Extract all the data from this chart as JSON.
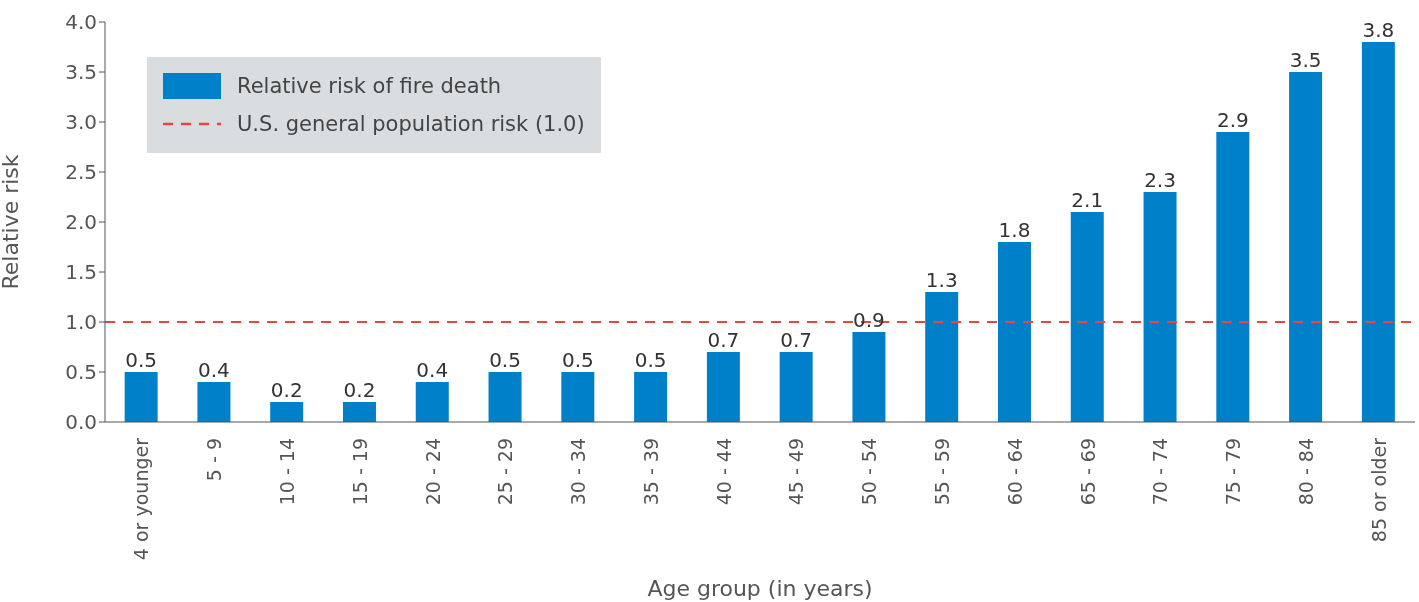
{
  "chart_data": {
    "type": "bar",
    "xlabel": "Age group (in years)",
    "ylabel": "Relative risk",
    "categories": [
      "4 or younger",
      "5 - 9",
      "10 - 14",
      "15 - 19",
      "20 - 24",
      "25 - 29",
      "30 - 34",
      "35 - 39",
      "40 - 44",
      "45 - 49",
      "50 - 54",
      "55 - 59",
      "60 - 64",
      "65 - 69",
      "70 - 74",
      "75 - 79",
      "80 - 84",
      "85 or older"
    ],
    "series": [
      {
        "name": "Relative risk of fire death",
        "color": "#0080c9",
        "values": [
          0.5,
          0.4,
          0.2,
          0.2,
          0.4,
          0.5,
          0.5,
          0.5,
          0.7,
          0.7,
          0.9,
          1.3,
          1.8,
          2.1,
          2.3,
          2.9,
          3.5,
          3.8
        ]
      }
    ],
    "ylim": [
      0,
      4
    ],
    "yticks": [
      "0.0",
      "0.5",
      "1.0",
      "1.5",
      "2.0",
      "2.5",
      "3.0",
      "3.5",
      "4.0"
    ],
    "ref_lines": [
      {
        "axis": "y",
        "value": 1,
        "label": "U.S. general population risk (1.0)",
        "color": "#e8473c",
        "line_style": "dashed"
      }
    ],
    "data_labels": true,
    "legend": "top left",
    "grid": false
  }
}
